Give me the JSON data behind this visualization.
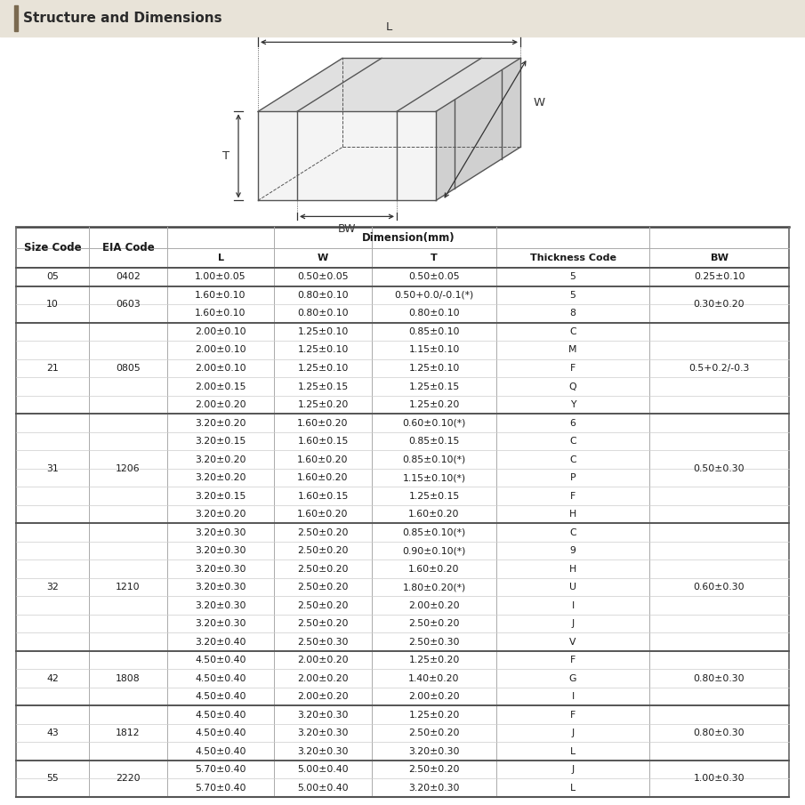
{
  "title": "Structure and Dimensions",
  "background_color": "#e8e3d8",
  "accent_color": "#7a6a50",
  "rows": [
    {
      "size": "05",
      "eia": "0402",
      "L": "1.00±0.05",
      "W": "0.50±0.05",
      "T": "0.50±0.05",
      "TC": "5",
      "BW": "0.25±0.10",
      "bw_span": 1,
      "group_start": true
    },
    {
      "size": "10",
      "eia": "0603",
      "L": "1.60±0.10",
      "W": "0.80±0.10",
      "T": "0.50+0.0/-0.1(*)",
      "TC": "5",
      "BW": "0.30±0.20",
      "bw_span": 2,
      "group_start": true
    },
    {
      "size": "",
      "eia": "",
      "L": "1.60±0.10",
      "W": "0.80±0.10",
      "T": "0.80±0.10",
      "TC": "8",
      "BW": "",
      "bw_span": 0,
      "group_start": false
    },
    {
      "size": "21",
      "eia": "0805",
      "L": "2.00±0.10",
      "W": "1.25±0.10",
      "T": "0.85±0.10",
      "TC": "C",
      "BW": "0.5+0.2/-0.3",
      "bw_span": 5,
      "group_start": true
    },
    {
      "size": "",
      "eia": "",
      "L": "2.00±0.10",
      "W": "1.25±0.10",
      "T": "1.15±0.10",
      "TC": "M",
      "BW": "",
      "bw_span": 0,
      "group_start": false
    },
    {
      "size": "",
      "eia": "",
      "L": "2.00±0.10",
      "W": "1.25±0.10",
      "T": "1.25±0.10",
      "TC": "F",
      "BW": "",
      "bw_span": 0,
      "group_start": false
    },
    {
      "size": "",
      "eia": "",
      "L": "2.00±0.15",
      "W": "1.25±0.15",
      "T": "1.25±0.15",
      "TC": "Q",
      "BW": "",
      "bw_span": 0,
      "group_start": false
    },
    {
      "size": "",
      "eia": "",
      "L": "2.00±0.20",
      "W": "1.25±0.20",
      "T": "1.25±0.20",
      "TC": "Y",
      "BW": "",
      "bw_span": 0,
      "group_start": false
    },
    {
      "size": "31",
      "eia": "1206",
      "L": "3.20±0.20",
      "W": "1.60±0.20",
      "T": "0.60±0.10(*)",
      "TC": "6",
      "BW": "0.50±0.30",
      "bw_span": 6,
      "group_start": true
    },
    {
      "size": "",
      "eia": "",
      "L": "3.20±0.15",
      "W": "1.60±0.15",
      "T": "0.85±0.15",
      "TC": "C",
      "BW": "",
      "bw_span": 0,
      "group_start": false
    },
    {
      "size": "",
      "eia": "",
      "L": "3.20±0.20",
      "W": "1.60±0.20",
      "T": "0.85±0.10(*)",
      "TC": "C",
      "BW": "",
      "bw_span": 0,
      "group_start": false
    },
    {
      "size": "",
      "eia": "",
      "L": "3.20±0.20",
      "W": "1.60±0.20",
      "T": "1.15±0.10(*)",
      "TC": "P",
      "BW": "",
      "bw_span": 0,
      "group_start": false
    },
    {
      "size": "",
      "eia": "",
      "L": "3.20±0.15",
      "W": "1.60±0.15",
      "T": "1.25±0.15",
      "TC": "F",
      "BW": "",
      "bw_span": 0,
      "group_start": false
    },
    {
      "size": "",
      "eia": "",
      "L": "3.20±0.20",
      "W": "1.60±0.20",
      "T": "1.60±0.20",
      "TC": "H",
      "BW": "",
      "bw_span": 0,
      "group_start": false
    },
    {
      "size": "32",
      "eia": "1210",
      "L": "3.20±0.30",
      "W": "2.50±0.20",
      "T": "0.85±0.10(*)",
      "TC": "C",
      "BW": "0.60±0.30",
      "bw_span": 7,
      "group_start": true
    },
    {
      "size": "",
      "eia": "",
      "L": "3.20±0.30",
      "W": "2.50±0.20",
      "T": "0.90±0.10(*)",
      "TC": "9",
      "BW": "",
      "bw_span": 0,
      "group_start": false
    },
    {
      "size": "",
      "eia": "",
      "L": "3.20±0.30",
      "W": "2.50±0.20",
      "T": "1.60±0.20",
      "TC": "H",
      "BW": "",
      "bw_span": 0,
      "group_start": false
    },
    {
      "size": "",
      "eia": "",
      "L": "3.20±0.30",
      "W": "2.50±0.20",
      "T": "1.80±0.20(*)",
      "TC": "U",
      "BW": "",
      "bw_span": 0,
      "group_start": false
    },
    {
      "size": "",
      "eia": "",
      "L": "3.20±0.30",
      "W": "2.50±0.20",
      "T": "2.00±0.20",
      "TC": "I",
      "BW": "",
      "bw_span": 0,
      "group_start": false
    },
    {
      "size": "",
      "eia": "",
      "L": "3.20±0.30",
      "W": "2.50±0.20",
      "T": "2.50±0.20",
      "TC": "J",
      "BW": "",
      "bw_span": 0,
      "group_start": false
    },
    {
      "size": "",
      "eia": "",
      "L": "3.20±0.40",
      "W": "2.50±0.30",
      "T": "2.50±0.30",
      "TC": "V",
      "BW": "",
      "bw_span": 0,
      "group_start": false
    },
    {
      "size": "42",
      "eia": "1808",
      "L": "4.50±0.40",
      "W": "2.00±0.20",
      "T": "1.25±0.20",
      "TC": "F",
      "BW": "0.80±0.30",
      "bw_span": 3,
      "group_start": true
    },
    {
      "size": "",
      "eia": "",
      "L": "4.50±0.40",
      "W": "2.00±0.20",
      "T": "1.40±0.20",
      "TC": "G",
      "BW": "",
      "bw_span": 0,
      "group_start": false
    },
    {
      "size": "",
      "eia": "",
      "L": "4.50±0.40",
      "W": "2.00±0.20",
      "T": "2.00±0.20",
      "TC": "I",
      "BW": "",
      "bw_span": 0,
      "group_start": false
    },
    {
      "size": "43",
      "eia": "1812",
      "L": "4.50±0.40",
      "W": "3.20±0.30",
      "T": "1.25±0.20",
      "TC": "F",
      "BW": "0.80±0.30",
      "bw_span": 3,
      "group_start": true
    },
    {
      "size": "",
      "eia": "",
      "L": "4.50±0.40",
      "W": "3.20±0.30",
      "T": "2.50±0.20",
      "TC": "J",
      "BW": "",
      "bw_span": 0,
      "group_start": false
    },
    {
      "size": "",
      "eia": "",
      "L": "4.50±0.40",
      "W": "3.20±0.30",
      "T": "3.20±0.30",
      "TC": "L",
      "BW": "",
      "bw_span": 0,
      "group_start": false
    },
    {
      "size": "55",
      "eia": "2220",
      "L": "5.70±0.40",
      "W": "5.00±0.40",
      "T": "2.50±0.20",
      "TC": "J",
      "BW": "1.00±0.30",
      "bw_span": 2,
      "group_start": true
    },
    {
      "size": "",
      "eia": "",
      "L": "5.70±0.40",
      "W": "5.00±0.40",
      "T": "3.20±0.30",
      "TC": "L",
      "BW": "",
      "bw_span": 0,
      "group_start": false
    }
  ]
}
